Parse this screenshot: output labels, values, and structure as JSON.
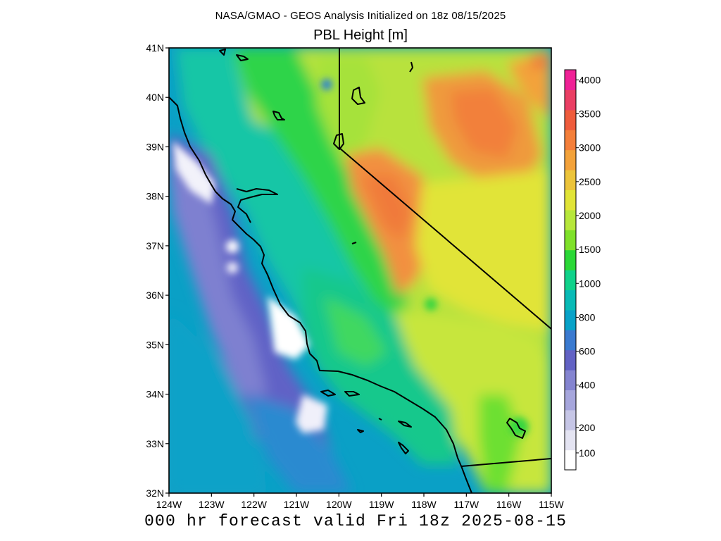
{
  "header": {
    "suptitle": "NASA/GMAO - GEOS Analysis Initialized on 18z 08/15/2025",
    "title": "PBL Height [m]"
  },
  "footer": {
    "forecast_text": "000 hr forecast valid Fri 18z 2025-08-15"
  },
  "map": {
    "lon_range": [
      -124,
      -115
    ],
    "lat_range": [
      32,
      41
    ],
    "lon_ticks": [
      "124W",
      "123W",
      "122W",
      "121W",
      "120W",
      "119W",
      "118W",
      "117W",
      "116W",
      "115W"
    ],
    "lat_ticks": [
      "41N",
      "40N",
      "39N",
      "38N",
      "37N",
      "36N",
      "35N",
      "34N",
      "33N",
      "32N"
    ],
    "features": [
      "coastline",
      "state-boundaries",
      "lakes",
      "channel-islands"
    ]
  },
  "colorbar": {
    "unit": "m",
    "tick_labels": [
      "100",
      "200",
      "400",
      "600",
      "800",
      "1000",
      "1500",
      "2000",
      "2500",
      "3000",
      "3500",
      "4000"
    ],
    "levels": [
      0,
      100,
      200,
      400,
      600,
      800,
      1000,
      1500,
      2000,
      2500,
      3000,
      3500,
      4000,
      4200
    ],
    "bins": [
      "#ffffff",
      "#e4e4f2",
      "#c6c6e6",
      "#a6a6dc",
      "#8484d0",
      "#6262c4",
      "#3a7ad0",
      "#08a2c8",
      "#08bab6",
      "#10d28a",
      "#2bd837",
      "#7fe12a",
      "#b7e73b",
      "#e1e437",
      "#ecc43a",
      "#f3a23a",
      "#f47f3a",
      "#ef5c3c",
      "#ea3f64",
      "#ef2196"
    ]
  }
}
